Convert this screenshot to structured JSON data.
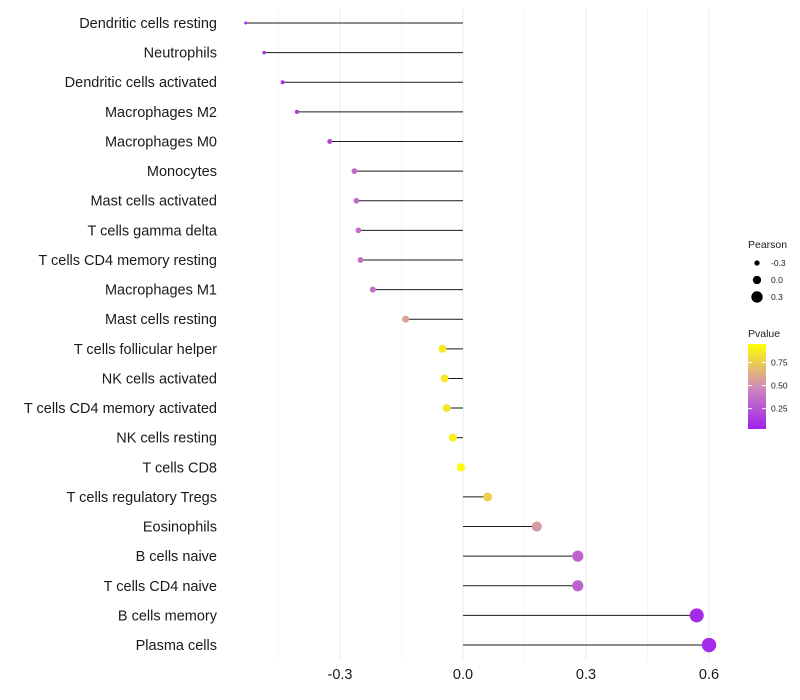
{
  "chart_data": {
    "type": "lollipop",
    "title": "",
    "xlabel": "",
    "ylabel": "",
    "xlim": [
      -0.53,
      0.67
    ],
    "xticks": [
      -0.3,
      0.0,
      0.3,
      0.6
    ],
    "xtick_labels": [
      "-0.3",
      "0.0",
      "0.3",
      "0.6"
    ],
    "grid": true,
    "categories": [
      "Dendritic cells resting",
      "Neutrophils",
      "Dendritic cells activated",
      "Macrophages M2",
      "Macrophages M0",
      "Monocytes",
      "Mast cells activated",
      "T cells gamma delta",
      "T cells CD4 memory resting",
      "Macrophages M1",
      "Mast cells resting",
      "T cells follicular helper",
      "NK cells activated",
      "T cells CD4 memory activated",
      "NK cells resting",
      "T cells CD8",
      "T cells regulatory  Tregs ",
      "Eosinophils",
      "B cells naive",
      "T cells CD4 naive",
      "B cells memory",
      "Plasma cells"
    ],
    "values": [
      -0.53,
      -0.485,
      -0.44,
      -0.405,
      -0.325,
      -0.265,
      -0.26,
      -0.255,
      -0.25,
      -0.22,
      -0.14,
      -0.05,
      -0.045,
      -0.04,
      -0.025,
      -0.005,
      0.06,
      0.18,
      0.28,
      0.28,
      0.57,
      0.6
    ],
    "pvalues": [
      0.05,
      0.06,
      0.08,
      0.12,
      0.2,
      0.33,
      0.35,
      0.36,
      0.37,
      0.38,
      0.6,
      0.9,
      0.9,
      0.88,
      0.94,
      0.99,
      0.8,
      0.56,
      0.31,
      0.3,
      0.05,
      0.05
    ],
    "legend": {
      "size_title": "Pearson",
      "size_breaks": [
        -0.3,
        0.0,
        0.3
      ],
      "size_labels": [
        "-0.3",
        "0.0",
        "0.3"
      ],
      "color_title": "Pvalue",
      "color_breaks": [
        0.75,
        0.5,
        0.25
      ],
      "color_labels": [
        "0.75",
        "0.50",
        "0.25"
      ],
      "color_low": "#a020f0",
      "color_mid": "#d08cb8",
      "color_high": "#ffff00",
      "placement": "right"
    }
  }
}
